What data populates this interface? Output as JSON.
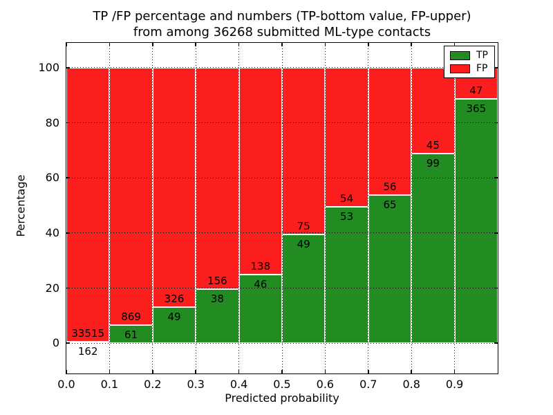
{
  "title": {
    "line1": "TP /FP percentage and numbers (TP-bottom value, FP-upper)",
    "line2": "from among 36268 submitted ML-type contacts"
  },
  "axes": {
    "xlabel": "Predicted probability",
    "ylabel": "Percentage",
    "x_tick_labels": [
      "0.0",
      "0.1",
      "0.2",
      "0.3",
      "0.4",
      "0.5",
      "0.6",
      "0.7",
      "0.8",
      "0.9"
    ],
    "y_tick_labels": [
      "0",
      "20",
      "40",
      "60",
      "80",
      "100"
    ],
    "y_tick_values": [
      0,
      20,
      40,
      60,
      80,
      100
    ]
  },
  "legend": {
    "position": "upper right",
    "items": [
      {
        "label": "TP",
        "color": "#228b22"
      },
      {
        "label": "FP",
        "color": "#fc1d1d"
      }
    ]
  },
  "chart_data": {
    "type": "bar",
    "subtype": "stacked-100-percent",
    "title": "TP /FP percentage and numbers (TP-bottom value, FP-upper) from among 36268 submitted ML-type contacts",
    "xlabel": "Predicted probability",
    "ylabel": "Percentage",
    "total_contacts_in_title": 36268,
    "bin_left_edges": [
      0.0,
      0.1,
      0.2,
      0.3,
      0.4,
      0.5,
      0.6,
      0.7,
      0.8,
      0.9
    ],
    "bin_width": 0.1,
    "series": [
      {
        "name": "TP",
        "stack_position": "bottom",
        "color": "#228b22",
        "counts": [
          162,
          61,
          49,
          38,
          46,
          49,
          53,
          65,
          99,
          365
        ]
      },
      {
        "name": "FP",
        "stack_position": "top",
        "color": "#fc1d1d",
        "counts": [
          33515,
          869,
          326,
          156,
          138,
          75,
          54,
          56,
          45,
          47
        ]
      }
    ],
    "tp_percent": [
      0.48,
      6.56,
      13.07,
      19.59,
      25.0,
      39.52,
      49.53,
      53.72,
      68.75,
      88.59
    ],
    "bar_edge_color": "#ffffff",
    "ylim": [
      -11,
      109
    ],
    "xlim": [
      0.0,
      1.0
    ],
    "grid": "dotted",
    "legend_position": "upper right"
  }
}
